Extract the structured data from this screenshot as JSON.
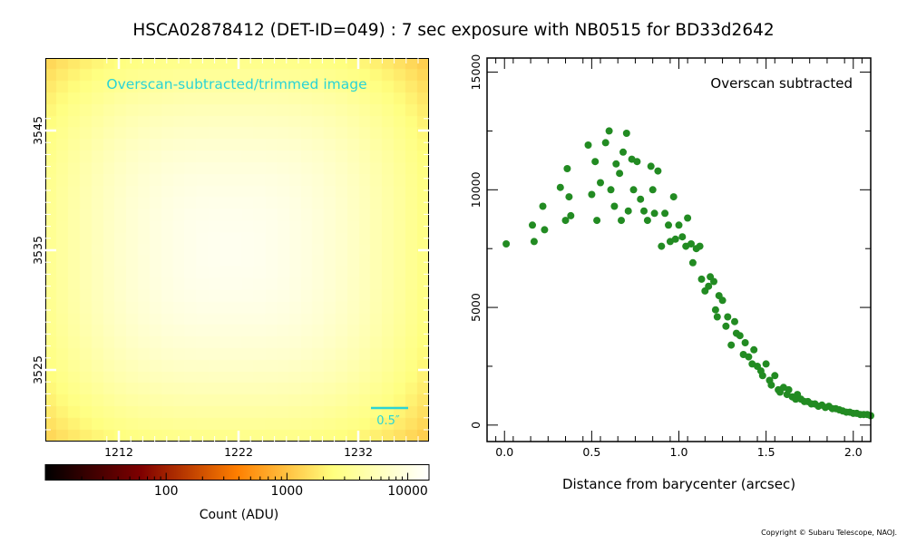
{
  "title": "HSCA02878412 (DET-ID=049) :  7 sec exposure with NB0515 for BD33d2642",
  "copyright": "Copyright © Subaru Telescope, NAOJ.",
  "image_panel": {
    "label": "Overscan-subtracted/trimmed image",
    "label_color": "#2ad4d4",
    "scale_bar_label": "0.5″",
    "x_tick_labels": [
      "1212",
      "1222",
      "1232"
    ],
    "y_tick_labels": [
      "3545",
      "3535",
      "3525"
    ],
    "colormap": "afmhot"
  },
  "colorbar": {
    "label": "Count (ADU)",
    "tick_labels": [
      "100",
      "1000",
      "10000"
    ],
    "scale": "log",
    "range": [
      10,
      15000
    ]
  },
  "chart_data": {
    "type": "scatter",
    "title": "",
    "annotation": "Overscan subtracted",
    "xlabel": "Distance from barycenter (arcsec)",
    "ylabel": "",
    "xlim": [
      -0.1,
      2.1
    ],
    "ylim": [
      -700,
      15600
    ],
    "x_ticks": [
      0.0,
      0.5,
      1.0,
      1.5,
      2.0
    ],
    "x_tick_labels": [
      "0.0",
      "0.5",
      "1.0",
      "1.5",
      "2.0"
    ],
    "y_ticks": [
      0,
      5000,
      10000,
      15000
    ],
    "y_tick_labels": [
      "0",
      "5000",
      "10000",
      "15000"
    ],
    "grid": false,
    "marker_color": "#228b22",
    "series": [
      {
        "x": [
          0.01,
          0.16,
          0.17,
          0.22,
          0.23,
          0.32,
          0.35,
          0.36,
          0.37,
          0.38,
          0.48,
          0.5,
          0.52,
          0.53,
          0.55,
          0.58,
          0.6,
          0.61,
          0.63,
          0.64,
          0.66,
          0.67,
          0.68,
          0.7,
          0.71,
          0.73,
          0.74,
          0.76,
          0.78,
          0.8,
          0.82,
          0.84,
          0.85,
          0.86,
          0.88,
          0.9,
          0.92,
          0.94,
          0.95,
          0.97,
          0.98,
          1.0,
          1.02,
          1.04,
          1.05,
          1.07,
          1.08,
          1.1,
          1.12,
          1.13,
          1.15,
          1.17,
          1.18,
          1.2,
          1.21,
          1.22,
          1.23,
          1.25,
          1.27,
          1.28,
          1.3,
          1.32,
          1.33,
          1.35,
          1.37,
          1.38,
          1.4,
          1.42,
          1.43,
          1.45,
          1.47,
          1.48,
          1.5,
          1.52,
          1.53,
          1.55,
          1.57,
          1.58,
          1.6,
          1.62,
          1.63,
          1.65,
          1.67,
          1.68,
          1.7,
          1.72,
          1.74,
          1.76,
          1.78,
          1.8,
          1.82,
          1.84,
          1.86,
          1.88,
          1.9,
          1.92,
          1.94,
          1.96,
          1.98,
          2.0,
          2.02,
          2.04,
          2.06,
          2.08,
          2.1
        ],
        "y": [
          7700,
          8500,
          7800,
          9300,
          8300,
          10100,
          8700,
          10900,
          9700,
          8900,
          11900,
          9800,
          11200,
          8700,
          10300,
          12000,
          12500,
          10000,
          9300,
          11100,
          10700,
          8700,
          11600,
          12400,
          9100,
          11300,
          10000,
          11200,
          9600,
          9100,
          8700,
          11000,
          10000,
          9000,
          10800,
          7600,
          9000,
          8500,
          7800,
          9700,
          7900,
          8500,
          8000,
          7600,
          8800,
          7700,
          6900,
          7500,
          7600,
          6200,
          5700,
          5900,
          6300,
          6100,
          4900,
          4600,
          5500,
          5300,
          4200,
          4600,
          3400,
          4400,
          3900,
          3800,
          3000,
          3500,
          2900,
          2600,
          3200,
          2500,
          2300,
          2100,
          2600,
          1900,
          1700,
          2100,
          1500,
          1400,
          1600,
          1300,
          1500,
          1200,
          1100,
          1300,
          1100,
          1000,
          1000,
          900,
          900,
          800,
          850,
          750,
          800,
          700,
          700,
          650,
          600,
          550,
          550,
          500,
          500,
          450,
          450,
          450,
          400
        ]
      }
    ]
  }
}
